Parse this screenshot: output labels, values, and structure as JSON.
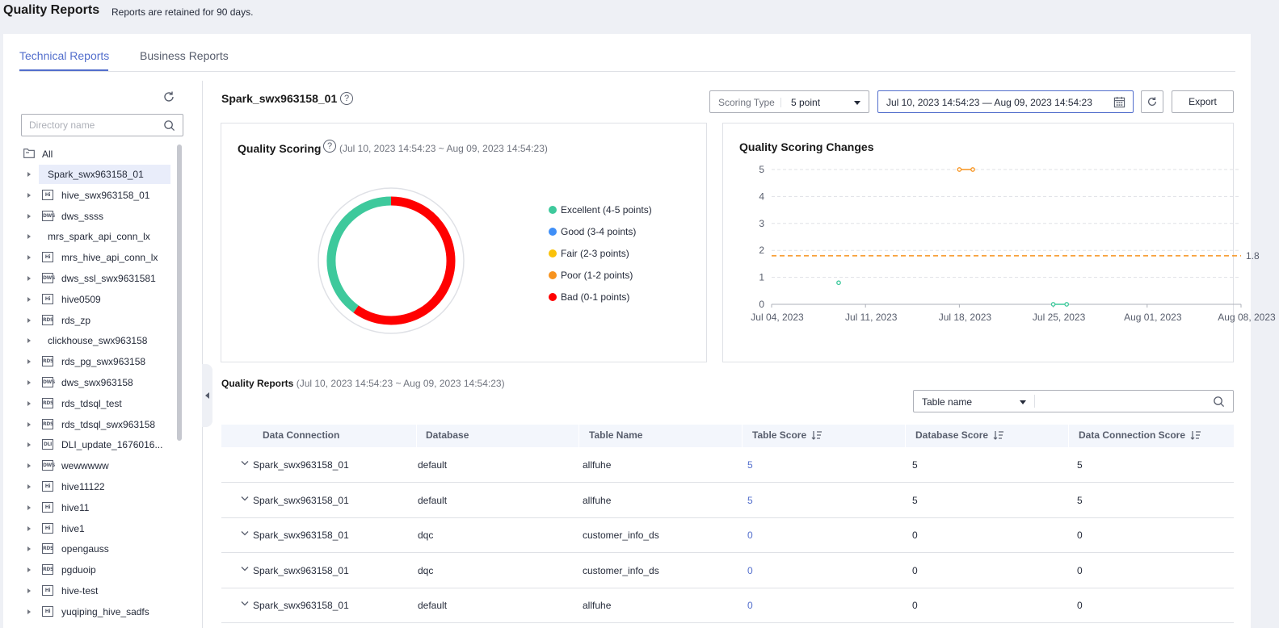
{
  "header": {
    "title": "Quality Reports",
    "subtitle": "Reports are retained for 90 days."
  },
  "tabs": [
    {
      "label": "Technical Reports",
      "active": true
    },
    {
      "label": "Business Reports",
      "active": false
    }
  ],
  "sidebar": {
    "search_placeholder": "Directory name",
    "root_label": "All",
    "items": [
      {
        "label": "Spark_swx963158_01",
        "badge": "",
        "selected": true
      },
      {
        "label": "hive_swx963158_01",
        "badge": "Hi"
      },
      {
        "label": "dws_ssss",
        "badge": "DWS"
      },
      {
        "label": "mrs_spark_api_conn_lx",
        "badge": ""
      },
      {
        "label": "mrs_hive_api_conn_lx",
        "badge": "Hi"
      },
      {
        "label": "dws_ssl_swx9631581",
        "badge": "DWS"
      },
      {
        "label": "hive0509",
        "badge": "Hi"
      },
      {
        "label": "rds_zp",
        "badge": "RDS"
      },
      {
        "label": "clickhouse_swx963158",
        "badge": ""
      },
      {
        "label": "rds_pg_swx963158",
        "badge": "RDS"
      },
      {
        "label": "dws_swx963158",
        "badge": "DWS"
      },
      {
        "label": "rds_tdsql_test",
        "badge": "RDS"
      },
      {
        "label": "rds_tdsql_swx963158",
        "badge": "RDS"
      },
      {
        "label": "DLI_update_1676016...",
        "badge": "DLI"
      },
      {
        "label": "wewwwww",
        "badge": "DWS"
      },
      {
        "label": "hive11122",
        "badge": "Hi"
      },
      {
        "label": "hive11",
        "badge": "Hi"
      },
      {
        "label": "hive1",
        "badge": "Hi"
      },
      {
        "label": "opengauss",
        "badge": "RDS"
      },
      {
        "label": "pgduoip",
        "badge": "RDS"
      },
      {
        "label": "hive-test",
        "badge": "Hi"
      },
      {
        "label": "yuqiping_hive_sadfs",
        "badge": "Hi"
      }
    ]
  },
  "main": {
    "connection_title": "Spark_swx963158_01",
    "scoring_type_prefix": "Scoring Type",
    "scoring_type_value": "5 point",
    "date_range": "Jul 10, 2023 14:54:23 — Aug 09, 2023 14:54:23",
    "export_label": "Export"
  },
  "quality_scoring": {
    "title": "Quality Scoring",
    "range": "(Jul 10, 2023 14:54:23 ~ Aug 09, 2023 14:54:23)",
    "legend": [
      {
        "label": "Excellent (4-5 points)",
        "color": "#3ec99c"
      },
      {
        "label": "Good (3-4 points)",
        "color": "#3f8ff7"
      },
      {
        "label": "Fair (2-3 points)",
        "color": "#fac20a"
      },
      {
        "label": "Poor (1-2 points)",
        "color": "#f7931e"
      },
      {
        "label": "Bad (0-1 points)",
        "color": "#ff0000"
      }
    ]
  },
  "chart_data": [
    {
      "type": "pie",
      "categories": [
        "Excellent (4-5 points)",
        "Good (3-4 points)",
        "Fair (2-3 points)",
        "Poor (1-2 points)",
        "Bad (0-1 points)"
      ],
      "values": [
        40,
        0,
        0,
        0,
        60
      ],
      "colors": [
        "#3ec99c",
        "#3f8ff7",
        "#fac20a",
        "#f7931e",
        "#ff0000"
      ],
      "donut": true
    },
    {
      "type": "line",
      "title": "Quality Scoring Changes",
      "x_ticks": [
        "Jul 04, 2023",
        "Jul 11, 2023",
        "Jul 18, 2023",
        "Jul 25, 2023",
        "Aug 01, 2023",
        "Aug 08, 2023"
      ],
      "y_ticks": [
        "0",
        "1",
        "2",
        "3",
        "4",
        "5"
      ],
      "ylim": [
        0,
        5
      ],
      "xlim": [
        "2023-07-04",
        "2023-08-08"
      ],
      "grid": true,
      "reference_line": {
        "value": 1.8,
        "label": "1.8",
        "color": "#f7931e"
      },
      "series": [
        {
          "color": "#3ec99c",
          "points": [
            {
              "x": "2023-07-09",
              "y": 0.8
            }
          ]
        },
        {
          "color": "#f7931e",
          "points": [
            {
              "x": "2023-07-18",
              "y": 5
            },
            {
              "x": "2023-07-19",
              "y": 5
            }
          ]
        },
        {
          "color": "#3ec99c",
          "points": [
            {
              "x": "2023-07-25",
              "y": 0
            },
            {
              "x": "2023-07-26",
              "y": 0
            }
          ]
        }
      ]
    }
  ],
  "reports": {
    "title": "Quality Reports",
    "range": "(Jul 10, 2023 14:54:23 ~ Aug 09, 2023 14:54:23)",
    "filter_label": "Table name",
    "columns": [
      "Data Connection",
      "Database",
      "Table Name",
      "Table Score",
      "Database Score",
      "Data Connection Score"
    ],
    "rows": [
      {
        "connection": "Spark_swx963158_01",
        "database": "default",
        "table": "allfuhe",
        "table_score": "5",
        "db_score": "5",
        "conn_score": "5"
      },
      {
        "connection": "Spark_swx963158_01",
        "database": "default",
        "table": "allfuhe",
        "table_score": "5",
        "db_score": "5",
        "conn_score": "5"
      },
      {
        "connection": "Spark_swx963158_01",
        "database": "dqc",
        "table": "customer_info_ds",
        "table_score": "0",
        "db_score": "0",
        "conn_score": "0"
      },
      {
        "connection": "Spark_swx963158_01",
        "database": "dqc",
        "table": "customer_info_ds",
        "table_score": "0",
        "db_score": "0",
        "conn_score": "0"
      },
      {
        "connection": "Spark_swx963158_01",
        "database": "default",
        "table": "allfuhe",
        "table_score": "0",
        "db_score": "0",
        "conn_score": "0"
      }
    ]
  }
}
